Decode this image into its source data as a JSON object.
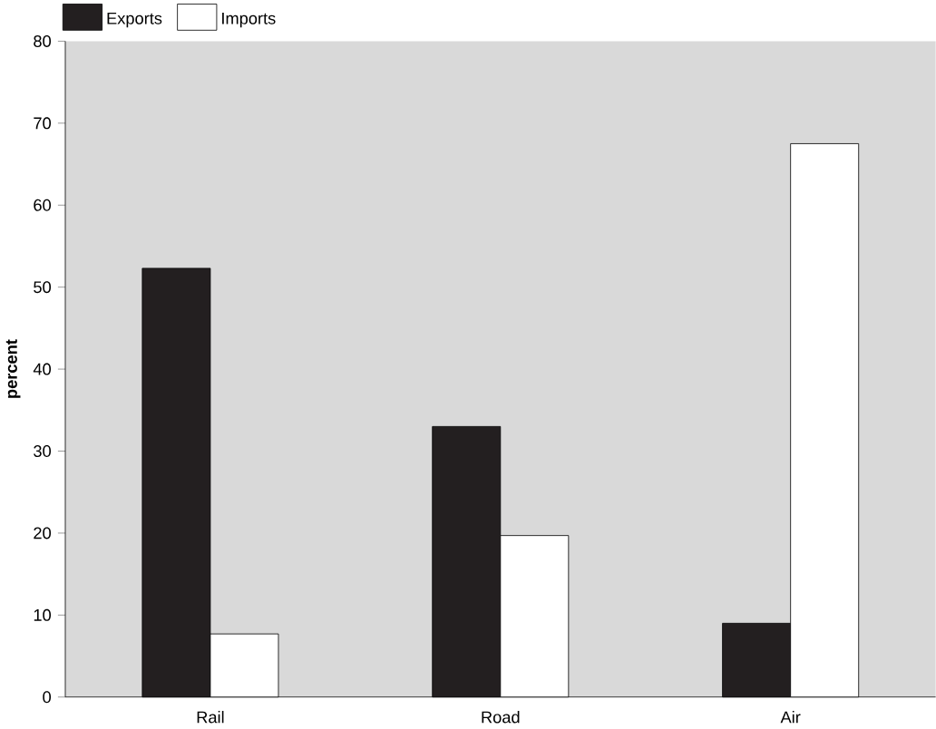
{
  "chart_data": {
    "type": "bar",
    "ylabel": "percent",
    "categories": [
      "Rail",
      "Road",
      "Air"
    ],
    "series": [
      {
        "name": "Exports",
        "color": "#231f20",
        "values": [
          52.3,
          33,
          9
        ]
      },
      {
        "name": "Imports",
        "color": "#ffffff",
        "values": [
          7.7,
          19.7,
          67.5
        ]
      }
    ],
    "ylim": [
      0,
      80
    ],
    "yticks": [
      0,
      10,
      20,
      30,
      40,
      50,
      60,
      70,
      80
    ],
    "legend": "top left",
    "grid": false
  }
}
